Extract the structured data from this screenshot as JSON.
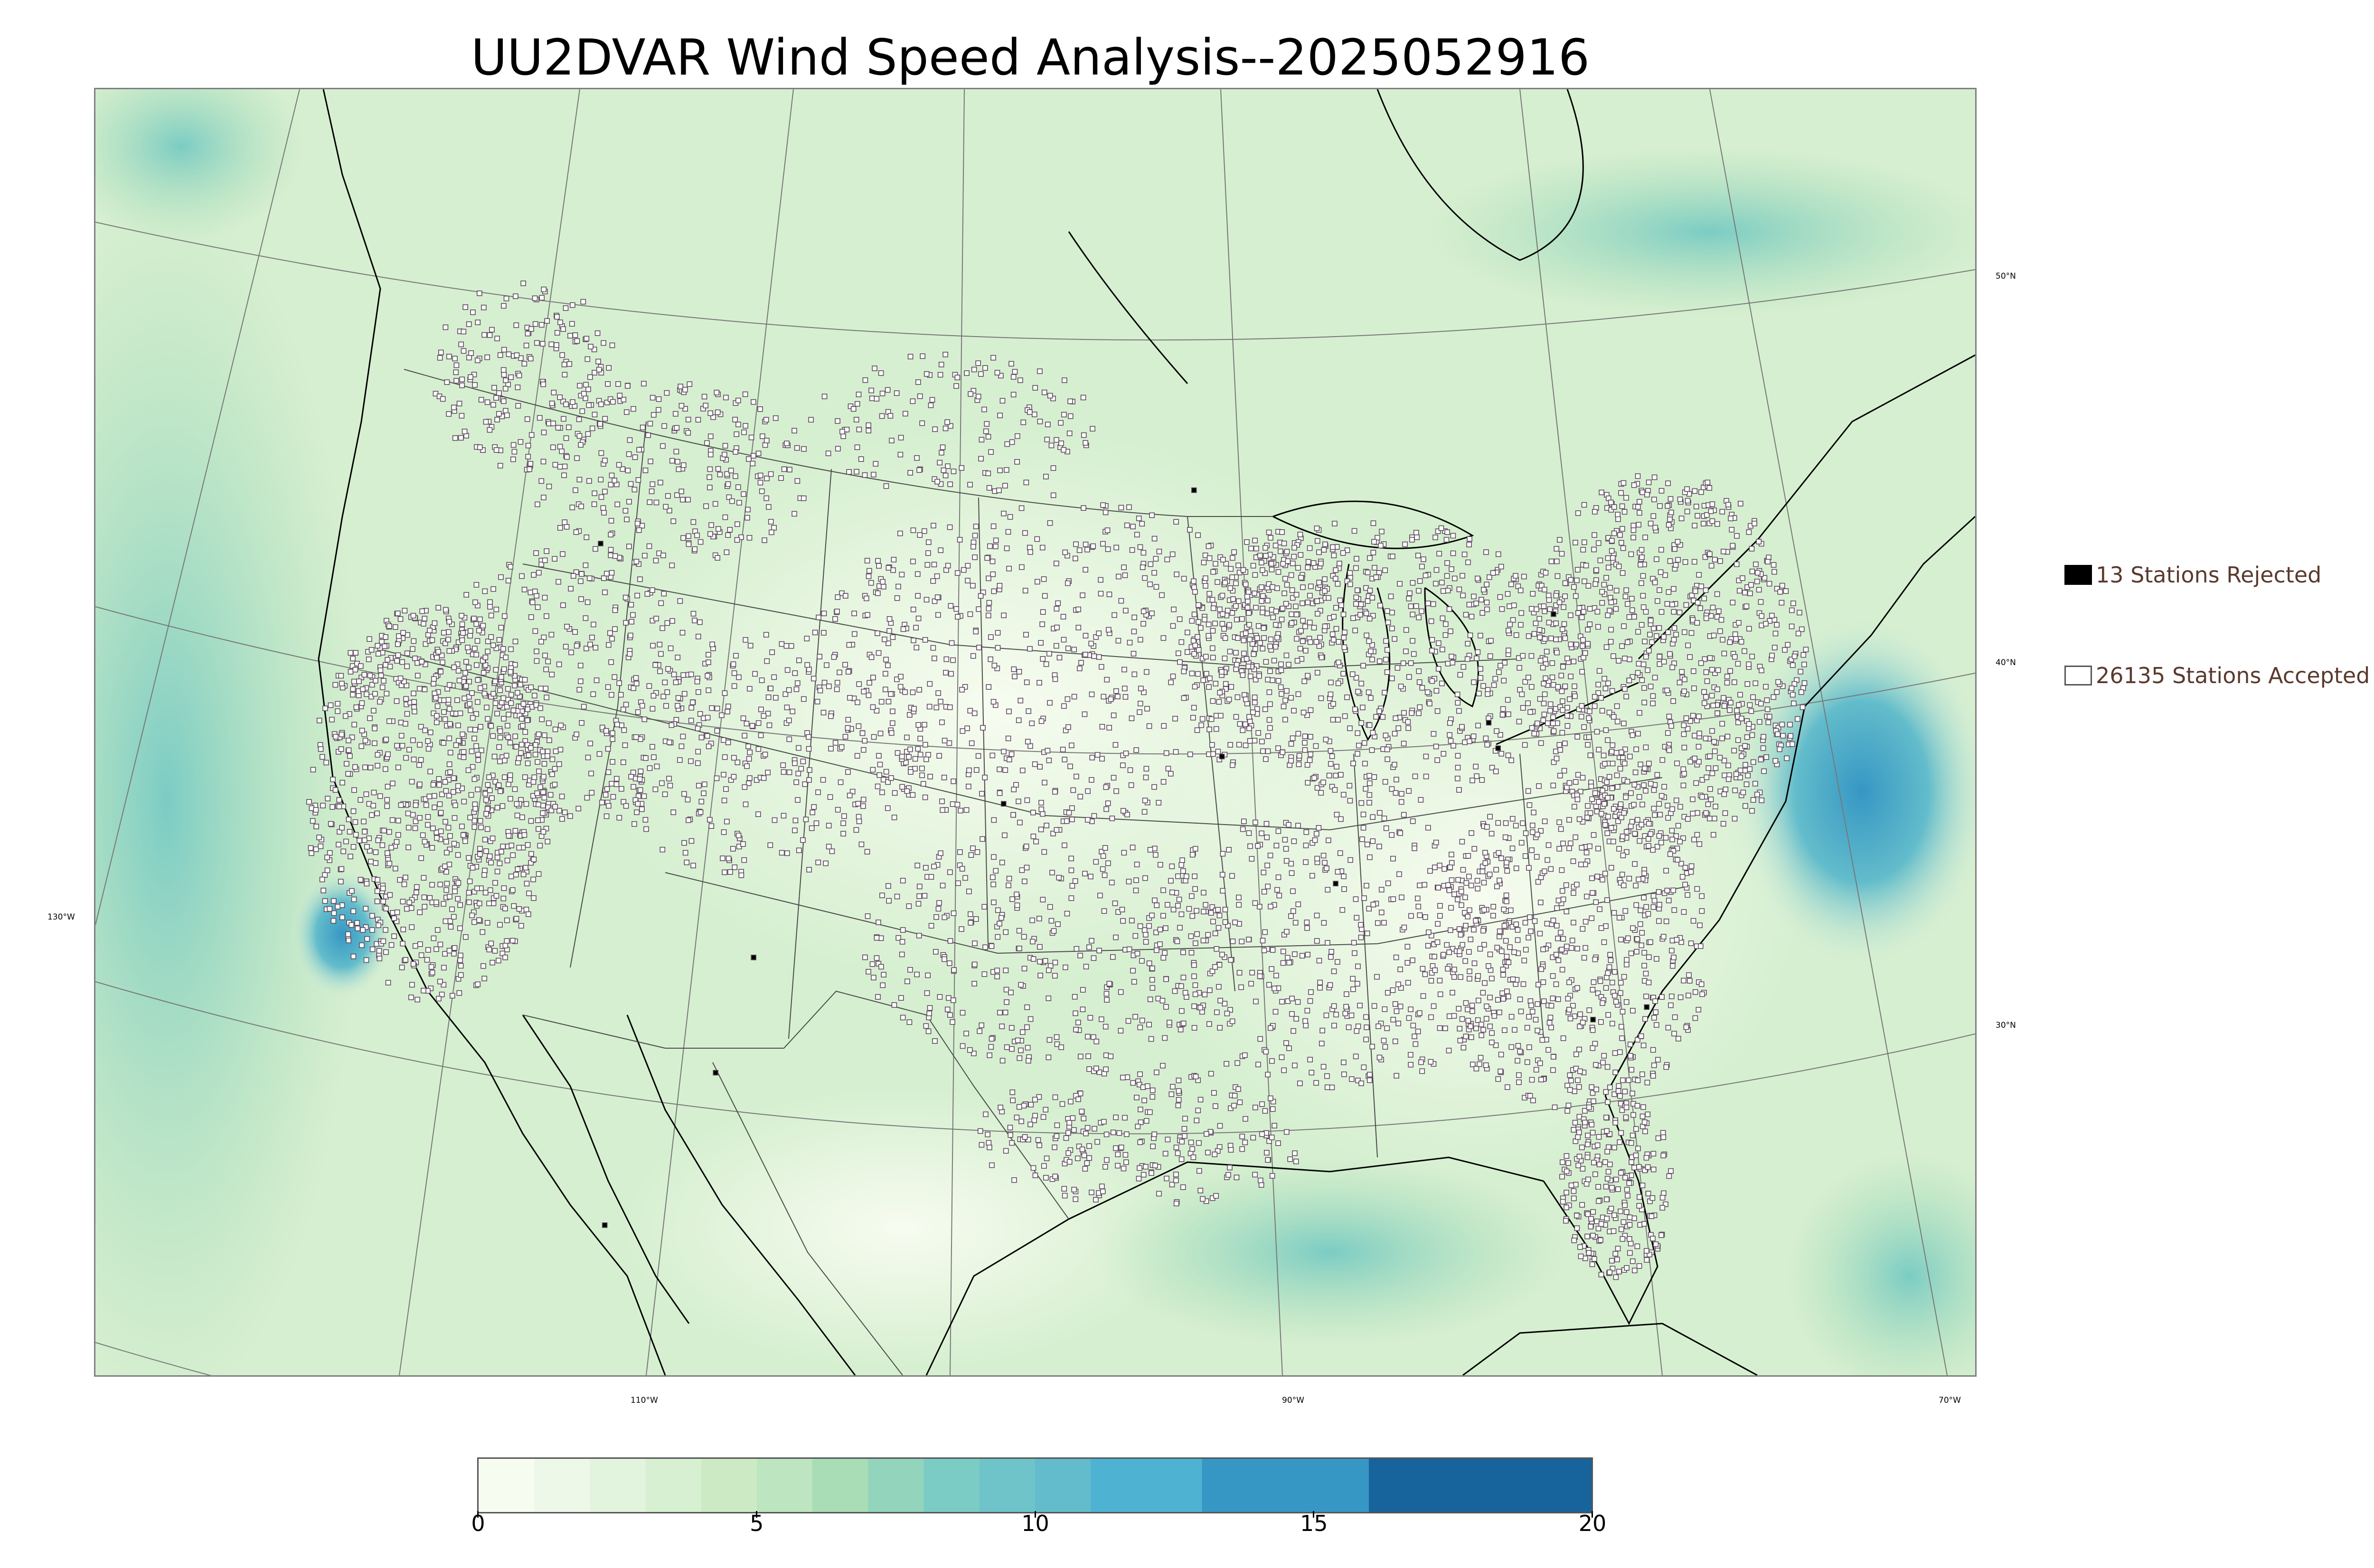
{
  "title": "UU2DVAR Wind Speed Analysis--2025052916",
  "map": {
    "lat_labels": [
      {
        "text": "50°N",
        "lat": 50
      },
      {
        "text": "40°N",
        "lat": 40
      },
      {
        "text": "30°N",
        "lat": 30
      }
    ],
    "lon_labels": [
      {
        "text": "130°W",
        "lon": -130
      },
      {
        "text": "110°W",
        "lon": -110
      },
      {
        "text": "90°W",
        "lon": -90
      },
      {
        "text": "70°W",
        "lon": -70
      }
    ]
  },
  "legend": {
    "rejected_label": "13 Stations Rejected",
    "accepted_label": "26135 Stations Accepted",
    "rejected_count": 13,
    "accepted_count": 26135
  },
  "colorbar": {
    "min": 0,
    "max": 20,
    "ticks": [
      "0",
      "5",
      "10",
      "15",
      "20"
    ],
    "levels": [
      {
        "from": 0,
        "to": 1,
        "color": "#f7fcf0"
      },
      {
        "from": 1,
        "to": 2,
        "color": "#eef8e9"
      },
      {
        "from": 2,
        "to": 3,
        "color": "#e3f4de"
      },
      {
        "from": 3,
        "to": 4,
        "color": "#d8f0d2"
      },
      {
        "from": 4,
        "to": 5,
        "color": "#ccebc5"
      },
      {
        "from": 5,
        "to": 6,
        "color": "#bde5bf"
      },
      {
        "from": 6,
        "to": 7,
        "color": "#a8ddb5"
      },
      {
        "from": 7,
        "to": 8,
        "color": "#92d4bc"
      },
      {
        "from": 8,
        "to": 9,
        "color": "#7bccc4"
      },
      {
        "from": 9,
        "to": 10,
        "color": "#6ec4c8"
      },
      {
        "from": 10,
        "to": 11,
        "color": "#62bccb"
      },
      {
        "from": 11,
        "to": 13,
        "color": "#4eb3d3"
      },
      {
        "from": 13,
        "to": 16,
        "color": "#3797c4"
      },
      {
        "from": 16,
        "to": 20,
        "color": "#17639c"
      }
    ]
  },
  "colors": {
    "background_field": "#dff2d8",
    "coastline": "#000000",
    "state_lines": "#4a4a4a",
    "graticule": "#777777",
    "station_accepted": "#ffffff",
    "station_rejected": "#000000"
  }
}
